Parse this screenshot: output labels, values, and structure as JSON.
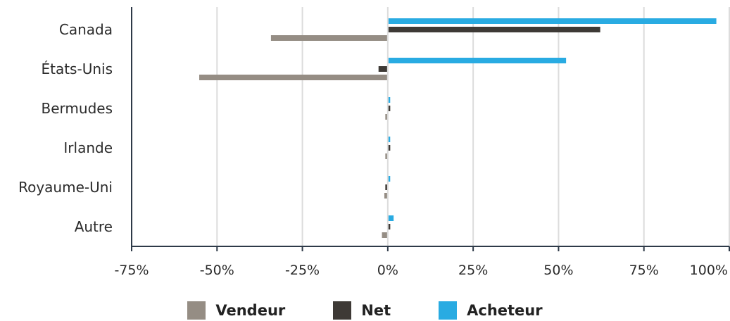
{
  "chart_data": {
    "type": "bar",
    "orientation": "horizontal",
    "title": "",
    "xlabel": "",
    "ylabel": "",
    "categories": [
      "Canada",
      "États-Unis",
      "Bermudes",
      "Irlande",
      "Royaume-Uni",
      "Autre"
    ],
    "series": [
      {
        "name": "Acheteur",
        "color": "#29abe2",
        "values": [
          96,
          52,
          0.5,
          0.5,
          0.5,
          1.5
        ]
      },
      {
        "name": "Net",
        "color": "#3e3a36",
        "values": [
          62,
          -2.5,
          0.3,
          0.3,
          -0.3,
          0.2
        ]
      },
      {
        "name": "Vendeur",
        "color": "#958d84",
        "values": [
          -34,
          -55,
          -0.3,
          -0.3,
          -0.8,
          -1.5
        ]
      }
    ],
    "xlim": [
      -75,
      100
    ],
    "xticks": [
      -75,
      -50,
      -25,
      0,
      25,
      50,
      75,
      100
    ],
    "xtick_labels": [
      "-75%",
      "-50%",
      "-25%",
      "0%",
      "25%",
      "50%",
      "75%",
      "100%"
    ],
    "grid": "vertical",
    "legend_position": "bottom",
    "legend": [
      {
        "name": "Vendeur",
        "color": "#958d84"
      },
      {
        "name": "Net",
        "color": "#3e3a36"
      },
      {
        "name": "Acheteur",
        "color": "#29abe2"
      }
    ]
  }
}
